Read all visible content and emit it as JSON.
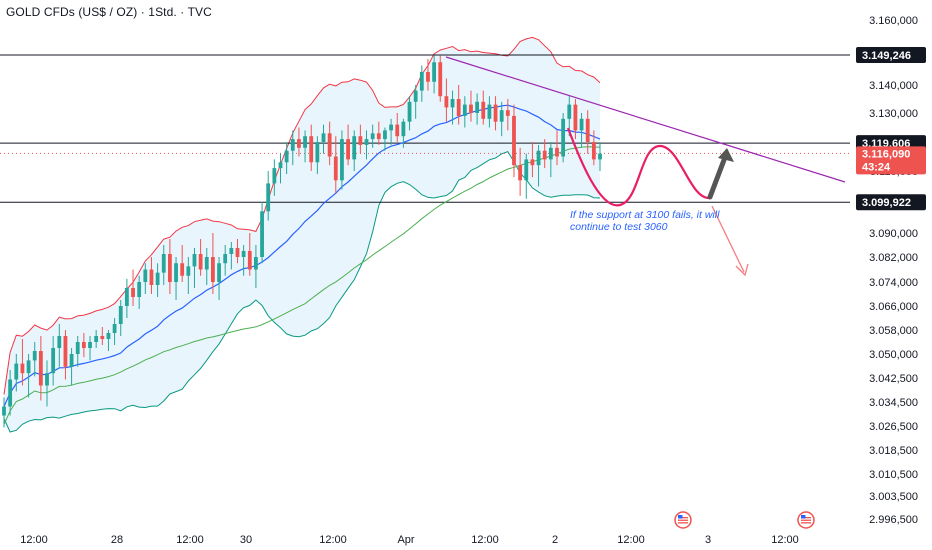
{
  "header": {
    "title": "GOLD CFDs (US$ / OZ) · 1Std. · TVC"
  },
  "price_tags": [
    {
      "label": "3.149,246",
      "value": 3149.246,
      "style": "line"
    },
    {
      "label": "3.119,606",
      "value": 3119.606,
      "style": "line"
    },
    {
      "label": "3.116,090",
      "value": 3116.09,
      "style": "current",
      "sub": "43:24"
    },
    {
      "label": "3.099,922",
      "value": 3099.922,
      "style": "line"
    }
  ],
  "annotation": {
    "text_line1": "If the support at 3100 fails, it will",
    "text_line2": "continue to test 3060"
  },
  "colors": {
    "up": "#26a69a",
    "down": "#ef5350",
    "band_fill": "#e3f2fd",
    "band_upper": "#f23645",
    "band_lower": "#089981",
    "ma_fast": "#2962ff",
    "ma_slow": "#4caf50",
    "trendline": "#9c27b0",
    "projection": "#e91e63",
    "arrow_up": "#555555",
    "arrow_down": "#f77c80"
  },
  "chart_data": {
    "type": "candlestick",
    "title": "GOLD CFDs (US$ / OZ) · 1Std. · TVC",
    "y_ticks": [
      "3.160,000",
      "3.140,000",
      "3.130,000",
      "3.110,000",
      "3.090,000",
      "3.082,000",
      "3.074,000",
      "3.066,000",
      "3.058,000",
      "3.050,000",
      "3.042,500",
      "3.034,500",
      "3.026,500",
      "3.018,500",
      "3.010,500",
      "3.003,500",
      "2.996,500"
    ],
    "x_ticks": [
      "12:00",
      "28",
      "12:00",
      "30",
      "12:00",
      "Apr",
      "12:00",
      "2",
      "12:00",
      "3",
      "12:00"
    ],
    "ohlc": [
      [
        3030,
        3036,
        3026,
        3033
      ],
      [
        3033,
        3045,
        3030,
        3042
      ],
      [
        3042,
        3050,
        3038,
        3047
      ],
      [
        3047,
        3055,
        3040,
        3044
      ],
      [
        3044,
        3050,
        3036,
        3048
      ],
      [
        3048,
        3054,
        3043,
        3051
      ],
      [
        3051,
        3056,
        3035,
        3040
      ],
      [
        3040,
        3048,
        3033,
        3044
      ],
      [
        3044,
        3056,
        3040,
        3052
      ],
      [
        3052,
        3060,
        3046,
        3056
      ],
      [
        3056,
        3058,
        3042,
        3046
      ],
      [
        3046,
        3052,
        3040,
        3050
      ],
      [
        3050,
        3056,
        3046,
        3054
      ],
      [
        3054,
        3057,
        3049,
        3052
      ],
      [
        3052,
        3056,
        3048,
        3054
      ],
      [
        3054,
        3058,
        3052,
        3056
      ],
      [
        3056,
        3059,
        3053,
        3055
      ],
      [
        3055,
        3058,
        3051,
        3057
      ],
      [
        3057,
        3062,
        3053,
        3060
      ],
      [
        3060,
        3068,
        3056,
        3066
      ],
      [
        3066,
        3075,
        3062,
        3072
      ],
      [
        3072,
        3078,
        3066,
        3069
      ],
      [
        3069,
        3076,
        3065,
        3074
      ],
      [
        3074,
        3080,
        3070,
        3078
      ],
      [
        3078,
        3082,
        3070,
        3073
      ],
      [
        3073,
        3080,
        3069,
        3077
      ],
      [
        3077,
        3086,
        3073,
        3083
      ],
      [
        3083,
        3088,
        3070,
        3074
      ],
      [
        3074,
        3082,
        3068,
        3080
      ],
      [
        3080,
        3086,
        3074,
        3076
      ],
      [
        3076,
        3082,
        3070,
        3079
      ],
      [
        3079,
        3085,
        3072,
        3083
      ],
      [
        3083,
        3088,
        3076,
        3078
      ],
      [
        3078,
        3085,
        3073,
        3082
      ],
      [
        3082,
        3090,
        3070,
        3074
      ],
      [
        3074,
        3082,
        3068,
        3080
      ],
      [
        3080,
        3086,
        3076,
        3083
      ],
      [
        3083,
        3087,
        3078,
        3085
      ],
      [
        3085,
        3088,
        3080,
        3082
      ],
      [
        3082,
        3086,
        3076,
        3084
      ],
      [
        3084,
        3090,
        3076,
        3078
      ],
      [
        3078,
        3086,
        3072,
        3082
      ],
      [
        3082,
        3100,
        3080,
        3097
      ],
      [
        3097,
        3110,
        3094,
        3106
      ],
      [
        3106,
        3114,
        3102,
        3111
      ],
      [
        3111,
        3116,
        3106,
        3113
      ],
      [
        3113,
        3120,
        3109,
        3117
      ],
      [
        3117,
        3124,
        3112,
        3121
      ],
      [
        3121,
        3125,
        3115,
        3118
      ],
      [
        3118,
        3124,
        3113,
        3122
      ],
      [
        3122,
        3126,
        3110,
        3113
      ],
      [
        3113,
        3122,
        3109,
        3120
      ],
      [
        3120,
        3126,
        3116,
        3123
      ],
      [
        3123,
        3127,
        3112,
        3115
      ],
      [
        3115,
        3122,
        3103,
        3107
      ],
      [
        3107,
        3124,
        3104,
        3121
      ],
      [
        3121,
        3126,
        3112,
        3114
      ],
      [
        3114,
        3124,
        3110,
        3122
      ],
      [
        3122,
        3126,
        3116,
        3119
      ],
      [
        3119,
        3124,
        3114,
        3121
      ],
      [
        3121,
        3126,
        3118,
        3123
      ],
      [
        3123,
        3127,
        3119,
        3121
      ],
      [
        3121,
        3125,
        3117,
        3124
      ],
      [
        3124,
        3128,
        3119,
        3126
      ],
      [
        3126,
        3130,
        3120,
        3122
      ],
      [
        3122,
        3128,
        3118,
        3127
      ],
      [
        3127,
        3136,
        3124,
        3134
      ],
      [
        3134,
        3140,
        3128,
        3138
      ],
      [
        3138,
        3146,
        3134,
        3144
      ],
      [
        3144,
        3148,
        3138,
        3141
      ],
      [
        3141,
        3149,
        3137,
        3147
      ],
      [
        3147,
        3149,
        3134,
        3136
      ],
      [
        3136,
        3142,
        3127,
        3132
      ],
      [
        3132,
        3138,
        3126,
        3135
      ],
      [
        3135,
        3140,
        3126,
        3129
      ],
      [
        3129,
        3136,
        3125,
        3133
      ],
      [
        3133,
        3138,
        3127,
        3130
      ],
      [
        3130,
        3137,
        3126,
        3134
      ],
      [
        3134,
        3138,
        3126,
        3128
      ],
      [
        3128,
        3136,
        3125,
        3133
      ],
      [
        3133,
        3136,
        3124,
        3127
      ],
      [
        3127,
        3134,
        3122,
        3131
      ],
      [
        3131,
        3135,
        3124,
        3129
      ],
      [
        3129,
        3133,
        3108,
        3112
      ],
      [
        3112,
        3118,
        3102,
        3107
      ],
      [
        3107,
        3116,
        3101,
        3114
      ],
      [
        3114,
        3120,
        3108,
        3112
      ],
      [
        3112,
        3119,
        3105,
        3117
      ],
      [
        3117,
        3121,
        3111,
        3114
      ],
      [
        3114,
        3120,
        3108,
        3118
      ],
      [
        3118,
        3124,
        3112,
        3115
      ],
      [
        3115,
        3130,
        3113,
        3128
      ],
      [
        3128,
        3136,
        3122,
        3133
      ],
      [
        3133,
        3135,
        3121,
        3124
      ],
      [
        3124,
        3130,
        3118,
        3128
      ],
      [
        3128,
        3131,
        3116,
        3120
      ],
      [
        3120,
        3124,
        3112,
        3114
      ],
      [
        3114,
        3120,
        3110,
        3116
      ]
    ],
    "horizontal_levels": [
      3149.246,
      3119.606,
      3099.922
    ],
    "current_price": 3116.09
  }
}
